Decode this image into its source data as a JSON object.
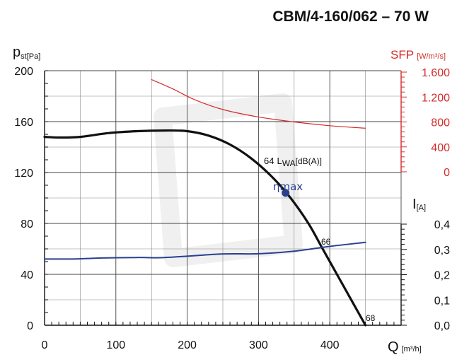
{
  "title": "CBM/4-160/062 – 70 W",
  "chart_data": {
    "type": "line",
    "x": {
      "label": "Q",
      "unit": "[m³/h]",
      "ticks": [
        0,
        100,
        200,
        300,
        400
      ],
      "range": [
        0,
        500
      ]
    },
    "y_left": {
      "label": "p",
      "label_sub": "st",
      "unit": "[Pa]",
      "ticks": [
        0,
        40,
        80,
        120,
        160,
        200
      ],
      "range": [
        0,
        200
      ]
    },
    "y_right_sfp": {
      "label": "SFP",
      "unit": "[W/m³/s]",
      "ticks": [
        "0",
        "400",
        "800",
        "1.200",
        "1.600"
      ],
      "tick_values": [
        0,
        400,
        800,
        1200,
        1600
      ],
      "range": [
        0,
        1600
      ],
      "color": "#d42a2a"
    },
    "y_right_current": {
      "label": "I",
      "unit": "[A]",
      "ticks": [
        "0,0",
        "0,1",
        "0,2",
        "0,3",
        "0,4"
      ],
      "tick_values": [
        0,
        0.1,
        0.2,
        0.3,
        0.4
      ],
      "range": [
        0,
        0.4
      ]
    },
    "series": [
      {
        "axis": "pressure",
        "color": "#111111",
        "points": [
          [
            0,
            148
          ],
          [
            20,
            147.5
          ],
          [
            50,
            148
          ],
          [
            90,
            151
          ],
          [
            130,
            152.5
          ],
          [
            170,
            153
          ],
          [
            200,
            152.5
          ],
          [
            230,
            149
          ],
          [
            260,
            142
          ],
          [
            290,
            131
          ],
          [
            320,
            116
          ],
          [
            345,
            100
          ],
          [
            370,
            80
          ],
          [
            390,
            60
          ],
          [
            410,
            40
          ],
          [
            425,
            25
          ],
          [
            440,
            10
          ],
          [
            450,
            0
          ]
        ]
      },
      {
        "axis": "current",
        "color": "#2a3f8f",
        "points": [
          [
            0,
            0.262
          ],
          [
            40,
            0.262
          ],
          [
            80,
            0.266
          ],
          [
            130,
            0.268
          ],
          [
            160,
            0.267
          ],
          [
            200,
            0.273
          ],
          [
            250,
            0.282
          ],
          [
            300,
            0.283
          ],
          [
            350,
            0.293
          ],
          [
            400,
            0.312
          ],
          [
            450,
            0.328
          ]
        ]
      },
      {
        "axis": "sfp",
        "color": "#d42a2a",
        "points": [
          [
            150,
            1480
          ],
          [
            180,
            1330
          ],
          [
            210,
            1160
          ],
          [
            250,
            1000
          ],
          [
            300,
            880
          ],
          [
            350,
            800
          ],
          [
            400,
            740
          ],
          [
            450,
            700
          ]
        ]
      }
    ],
    "annotations": {
      "lwa_value": "64",
      "lwa_label": "L",
      "lwa_sub": "WA",
      "lwa_unit": "[dB(A)]",
      "lwa_66": "66",
      "lwa_68": "68",
      "eta_label": "ηmax",
      "eta_point": [
        338,
        104
      ]
    },
    "grid": true,
    "legend": "none"
  }
}
